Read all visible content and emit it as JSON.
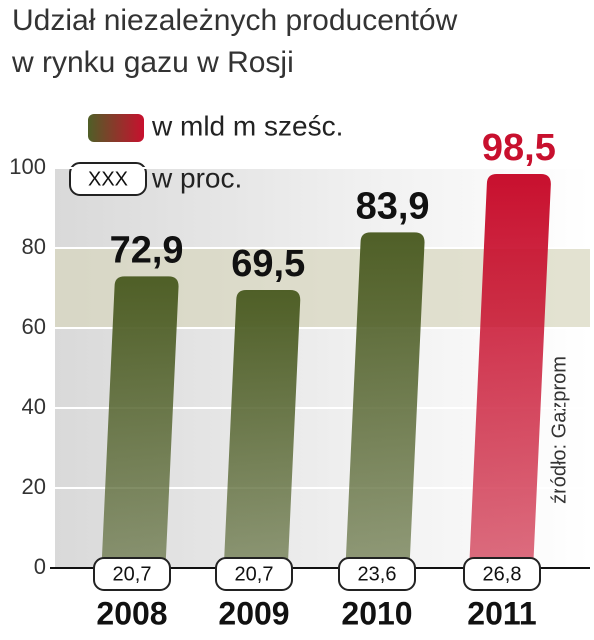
{
  "chart_data": {
    "type": "bar",
    "title_lines": [
      "Udział niezależnych producentów",
      "w rynku gazu w Rosji"
    ],
    "categories": [
      "2008",
      "2009",
      "2010",
      "2011"
    ],
    "series": [
      {
        "name": "w mld m sześc.",
        "colors": [
          "#4f5f27",
          "#4f5f27",
          "#4f5f27",
          "#c8102e"
        ],
        "values": [
          72.9,
          69.5,
          83.9,
          98.5
        ],
        "value_labels": [
          "72,9",
          "69,5",
          "83,9",
          "98,5"
        ],
        "label_colors": [
          "#111111",
          "#111111",
          "#111111",
          "#c8102e"
        ]
      }
    ],
    "shares": {
      "name": "w proc.",
      "sample": "XXX",
      "values": [
        20.7,
        20.7,
        23.6,
        26.8
      ],
      "value_labels": [
        "20,7",
        "20,7",
        "23,6",
        "26,8"
      ]
    },
    "ylim": [
      0,
      100
    ],
    "yticks": [
      0,
      20,
      40,
      60,
      80,
      100
    ],
    "grid": true,
    "source": "źródło: Gazprom"
  }
}
